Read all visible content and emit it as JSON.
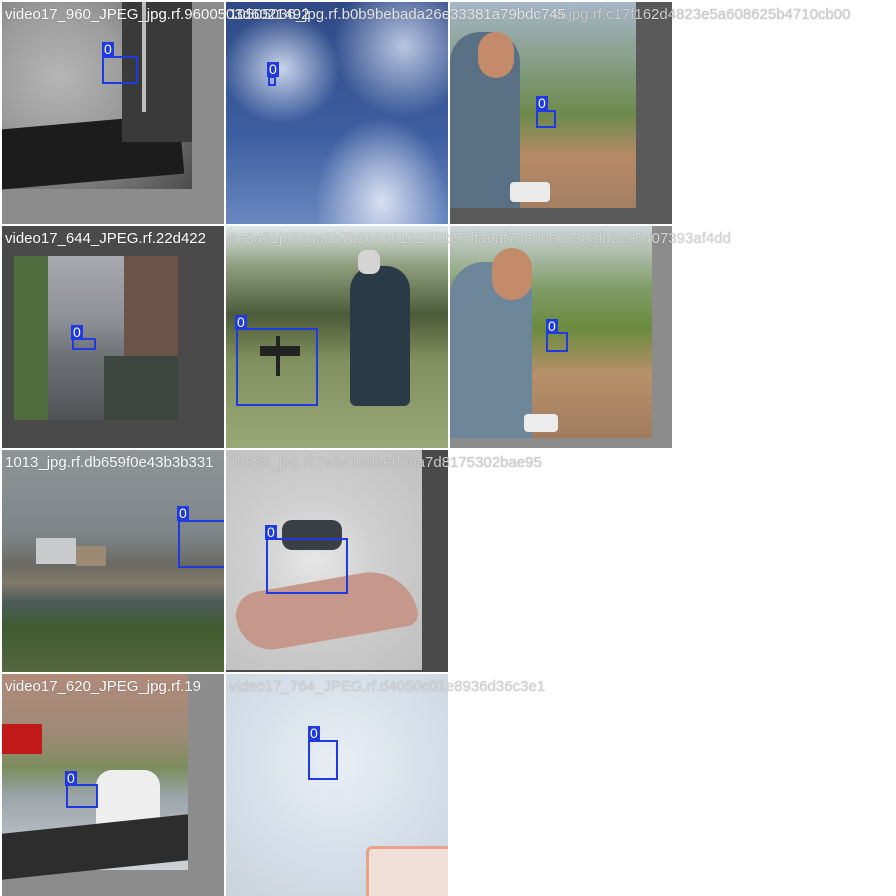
{
  "mosaic": {
    "tiles": [
      {
        "filename": "video17_960_JPEG_jpg.rf.9600503d6021492",
        "boxes": [
          {
            "label": "0"
          }
        ]
      },
      {
        "filename": "10505036_jpg.rf.b0b9bebada26e33381a79bdc745",
        "boxes": [
          {
            "label": "0"
          }
        ]
      },
      {
        "filename": "a.jpg.rf.c17f162d4823e5a608625b4710cb00",
        "boxes": [
          {
            "label": "0"
          }
        ]
      },
      {
        "filename": "video17_644_JPEG.rf.22d422",
        "boxes": [
          {
            "label": "0"
          }
        ]
      },
      {
        "filename": "6e8a61j956ga3b7b265451027f8b57ffa9af73e00ec5303fb2c95407393af4dd",
        "boxes": [
          {
            "label": "0"
          }
        ]
      },
      {
        "filename": "",
        "boxes": [
          {
            "label": "0"
          }
        ]
      },
      {
        "filename": "1013_jpg.rf.db659f0e43b3b331",
        "boxes": [
          {
            "label": "0"
          }
        ]
      },
      {
        "filename": "14589_jpg.rf.7a341dd4eb0ba7d8175302bae95",
        "boxes": [
          {
            "label": "0"
          }
        ]
      },
      {
        "filename": "video17_620_JPEG_jpg.rf.19",
        "boxes": [
          {
            "label": "0"
          }
        ]
      },
      {
        "filename": "video17_764_JPEG.rf.d4050c01e8936d36c3e1",
        "boxes": [
          {
            "label": "0"
          }
        ]
      }
    ]
  }
}
